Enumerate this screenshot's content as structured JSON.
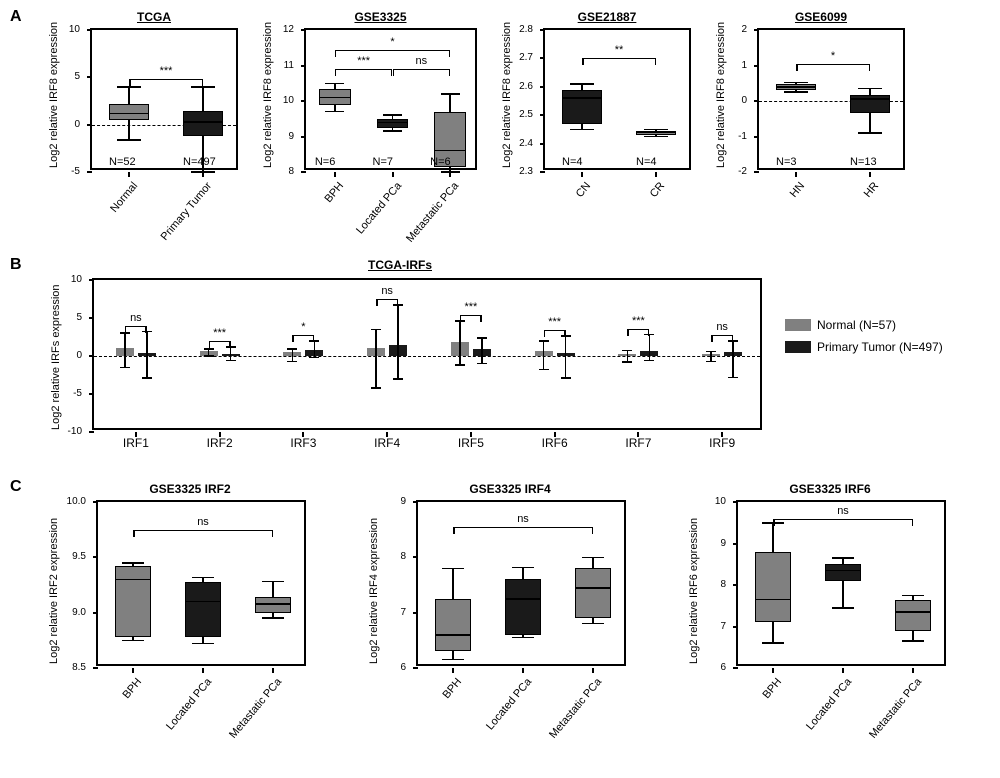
{
  "panel_labels": {
    "A": "A",
    "B": "B",
    "C": "C"
  },
  "panelA": {
    "common_ylabel": "Log2 relative IRF8 expression",
    "plots": [
      {
        "title": "TCGA",
        "ylim": [
          -5,
          10
        ],
        "ytick_step": 5,
        "zero_dash": true,
        "groups": [
          {
            "label": "Normal",
            "n": "N=52",
            "q1": 0.5,
            "median": 1.2,
            "q3": 2.2,
            "wlo": -1.6,
            "whi": 4.0,
            "color": "#808080"
          },
          {
            "label": "Primary Tumor",
            "n": "N=497",
            "q1": -1.2,
            "median": 0.3,
            "q3": 1.4,
            "wlo": -5.0,
            "whi": 4.0,
            "color": "#1a1a1a"
          }
        ],
        "sig": [
          {
            "i0": 0,
            "i1": 1,
            "label": "***",
            "level": 4.8
          }
        ]
      },
      {
        "title": "GSE3325",
        "ylim": [
          8,
          12
        ],
        "ytick_step": 1,
        "zero_dash": false,
        "groups": [
          {
            "label": "BPH",
            "n": "N=6",
            "q1": 9.9,
            "median": 10.1,
            "q3": 10.35,
            "wlo": 9.7,
            "whi": 10.5,
            "color": "#808080"
          },
          {
            "label": "Located PCa",
            "n": "N=7",
            "q1": 9.25,
            "median": 9.4,
            "q3": 9.5,
            "wlo": 9.15,
            "whi": 9.6,
            "color": "#1a1a1a"
          },
          {
            "label": "Metastatic PCa",
            "n": "N=6",
            "q1": 8.15,
            "median": 8.6,
            "q3": 9.7,
            "wlo": 8.0,
            "whi": 10.2,
            "color": "#808080"
          }
        ],
        "sig": [
          {
            "i0": 0,
            "i1": 1,
            "label": "***",
            "level": 10.9
          },
          {
            "i0": 1,
            "i1": 2,
            "label": "ns",
            "level": 10.9
          },
          {
            "i0": 0,
            "i1": 2,
            "label": "*",
            "level": 11.45
          }
        ]
      },
      {
        "title": "GSE21887",
        "ylim": [
          2.3,
          2.8
        ],
        "ytick_step": 0.1,
        "zero_dash": false,
        "groups": [
          {
            "label": "CN",
            "n": "N=4",
            "q1": 2.47,
            "median": 2.56,
            "q3": 2.59,
            "wlo": 2.45,
            "whi": 2.61,
            "color": "#1a1a1a"
          },
          {
            "label": "CR",
            "n": "N=4",
            "q1": 2.43,
            "median": 2.44,
            "q3": 2.445,
            "wlo": 2.425,
            "whi": 2.45,
            "color": "#808080"
          }
        ],
        "sig": [
          {
            "i0": 0,
            "i1": 1,
            "label": "**",
            "level": 2.7
          }
        ]
      },
      {
        "title": "GSE6099",
        "ylim": [
          -2,
          2
        ],
        "ytick_step": 1,
        "zero_dash": true,
        "groups": [
          {
            "label": "HN",
            "n": "N=3",
            "q1": 0.3,
            "median": 0.4,
            "q3": 0.48,
            "wlo": 0.25,
            "whi": 0.52,
            "color": "#808080"
          },
          {
            "label": "HR",
            "n": "N=13",
            "q1": -0.35,
            "median": 0.05,
            "q3": 0.18,
            "wlo": -0.9,
            "whi": 0.35,
            "color": "#1a1a1a"
          }
        ],
        "sig": [
          {
            "i0": 0,
            "i1": 1,
            "label": "*",
            "level": 1.05
          }
        ]
      }
    ]
  },
  "panelB": {
    "title": "TCGA-IRFs",
    "ylabel": "Log2 relative IRFs expression",
    "ylim": [
      -10,
      10
    ],
    "ytick_step": 5,
    "zero_dash": true,
    "legend": [
      {
        "label": "Normal (N=57)",
        "color": "#808080"
      },
      {
        "label": "Primary Tumor (N=497)",
        "color": "#1a1a1a"
      }
    ],
    "genes": [
      {
        "name": "IRF1",
        "sig": "ns",
        "normal": {
          "mean": 1.0,
          "err_hi": 3.0,
          "err_lo": -1.5
        },
        "tumor": {
          "mean": 0.4,
          "err_hi": 3.2,
          "err_lo": -2.9
        }
      },
      {
        "name": "IRF2",
        "sig": "***",
        "normal": {
          "mean": 0.6,
          "err_hi": 0.9,
          "err_lo": 0.0
        },
        "tumor": {
          "mean": 0.3,
          "err_hi": 1.2,
          "err_lo": -0.6
        }
      },
      {
        "name": "IRF3",
        "sig": "*",
        "normal": {
          "mean": 0.5,
          "err_hi": 0.9,
          "err_lo": -0.7
        },
        "tumor": {
          "mean": 0.8,
          "err_hi": 2.0,
          "err_lo": -0.2
        }
      },
      {
        "name": "IRF4",
        "sig": "ns",
        "normal": {
          "mean": 1.1,
          "err_hi": 3.5,
          "err_lo": -4.2
        },
        "tumor": {
          "mean": 1.4,
          "err_hi": 6.7,
          "err_lo": -3.0
        }
      },
      {
        "name": "IRF5",
        "sig": "***",
        "normal": {
          "mean": 1.8,
          "err_hi": 4.6,
          "err_lo": -1.2
        },
        "tumor": {
          "mean": 0.9,
          "err_hi": 2.4,
          "err_lo": -1.0
        }
      },
      {
        "name": "IRF6",
        "sig": "***",
        "normal": {
          "mean": 0.6,
          "err_hi": 2.0,
          "err_lo": -1.8
        },
        "tumor": {
          "mean": 0.4,
          "err_hi": 2.6,
          "err_lo": -2.9
        }
      },
      {
        "name": "IRF7",
        "sig": "***",
        "normal": {
          "mean": 0.3,
          "err_hi": 0.7,
          "err_lo": -0.8
        },
        "tumor": {
          "mean": 0.7,
          "err_hi": 2.8,
          "err_lo": -0.6
        }
      },
      {
        "name": "IRF9",
        "sig": "ns",
        "normal": {
          "mean": 0.3,
          "err_hi": 0.6,
          "err_lo": -0.7
        },
        "tumor": {
          "mean": 0.5,
          "err_hi": 2.0,
          "err_lo": -2.8
        }
      }
    ]
  },
  "panelC": {
    "plots": [
      {
        "title": "GSE3325 IRF2",
        "ylabel": "Log2 relative IRF2 expression",
        "ylim": [
          8.5,
          10.0
        ],
        "ytick_step": 0.5,
        "groups": [
          {
            "label": "BPH",
            "q1": 8.78,
            "median": 9.3,
            "q3": 9.42,
            "wlo": 8.75,
            "whi": 9.45,
            "color": "#808080"
          },
          {
            "label": "Located PCa",
            "q1": 8.78,
            "median": 9.1,
            "q3": 9.28,
            "wlo": 8.72,
            "whi": 9.32,
            "color": "#1a1a1a"
          },
          {
            "label": "Metastatic PCa",
            "q1": 9.0,
            "median": 9.08,
            "q3": 9.14,
            "wlo": 8.95,
            "whi": 9.28,
            "color": "#808080"
          }
        ],
        "sig": [
          {
            "i0": 0,
            "i1": 2,
            "label": "ns",
            "level": 9.75
          }
        ]
      },
      {
        "title": "GSE3325 IRF4",
        "ylabel": "Log2 relative IRF4 expression",
        "ylim": [
          6,
          9
        ],
        "ytick_step": 1,
        "groups": [
          {
            "label": "BPH",
            "q1": 6.3,
            "median": 6.6,
            "q3": 7.25,
            "wlo": 6.15,
            "whi": 7.8,
            "color": "#808080"
          },
          {
            "label": "Located PCa",
            "q1": 6.6,
            "median": 7.25,
            "q3": 7.6,
            "wlo": 6.55,
            "whi": 7.82,
            "color": "#1a1a1a"
          },
          {
            "label": "Metastatic PCa",
            "q1": 6.9,
            "median": 7.45,
            "q3": 7.8,
            "wlo": 6.8,
            "whi": 8.0,
            "color": "#808080"
          }
        ],
        "sig": [
          {
            "i0": 0,
            "i1": 2,
            "label": "ns",
            "level": 8.55
          }
        ]
      },
      {
        "title": "GSE3325 IRF6",
        "ylabel": "Log2 relative IRF6 expression",
        "ylim": [
          6,
          10
        ],
        "ytick_step": 1,
        "groups": [
          {
            "label": "BPH",
            "q1": 7.1,
            "median": 7.65,
            "q3": 8.8,
            "wlo": 6.6,
            "whi": 9.5,
            "color": "#808080"
          },
          {
            "label": "Located PCa",
            "q1": 8.1,
            "median": 8.35,
            "q3": 8.5,
            "wlo": 7.45,
            "whi": 8.65,
            "color": "#1a1a1a"
          },
          {
            "label": "Metastatic PCa",
            "q1": 6.9,
            "median": 7.35,
            "q3": 7.65,
            "wlo": 6.65,
            "whi": 7.75,
            "color": "#808080"
          }
        ],
        "sig": [
          {
            "i0": 0,
            "i1": 2,
            "label": "ns",
            "level": 9.6
          }
        ]
      }
    ]
  },
  "colors": {
    "normal": "#808080",
    "tumor": "#1a1a1a",
    "axis": "#000000",
    "bg": "#ffffff"
  }
}
